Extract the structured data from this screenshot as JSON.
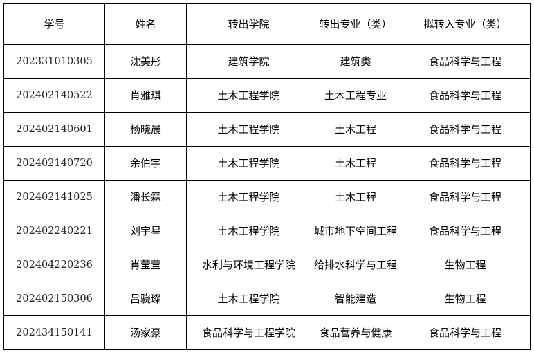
{
  "table": {
    "headers": [
      "学号",
      "姓名",
      "转出学院",
      "转出专业（类）",
      "拟转入专业（类）"
    ],
    "rows": [
      [
        "202331010305",
        "沈美彤",
        "建筑学院",
        "建筑类",
        "食品科学与工程"
      ],
      [
        "202402140522",
        "肖雅琪",
        "土木工程学院",
        "土木工程专业",
        "食品科学与工程"
      ],
      [
        "202402140601",
        "杨晓晨",
        "土木工程学院",
        "土木工程",
        "食品科学与工程"
      ],
      [
        "202402140720",
        "余伯宇",
        "土木工程学院",
        "土木工程",
        "食品科学与工程"
      ],
      [
        "202402141025",
        "潘长霖",
        "土木工程学院",
        "土木工程",
        "食品科学与工程"
      ],
      [
        "202402240221",
        "刘宇星",
        "土木工程学院",
        "城市地下空间工程",
        "食品科学与工程"
      ],
      [
        "202404220236",
        "肖莹莹",
        "水利与环境工程学院",
        "给排水科学与工程",
        "生物工程"
      ],
      [
        "202402150306",
        "吕骁璨",
        "土木工程学院",
        "智能建造",
        "生物工程"
      ],
      [
        "202434150141",
        "汤家豪",
        "食品科学与工程学院",
        "食品营养与健康",
        "食品科学与工程"
      ]
    ]
  }
}
